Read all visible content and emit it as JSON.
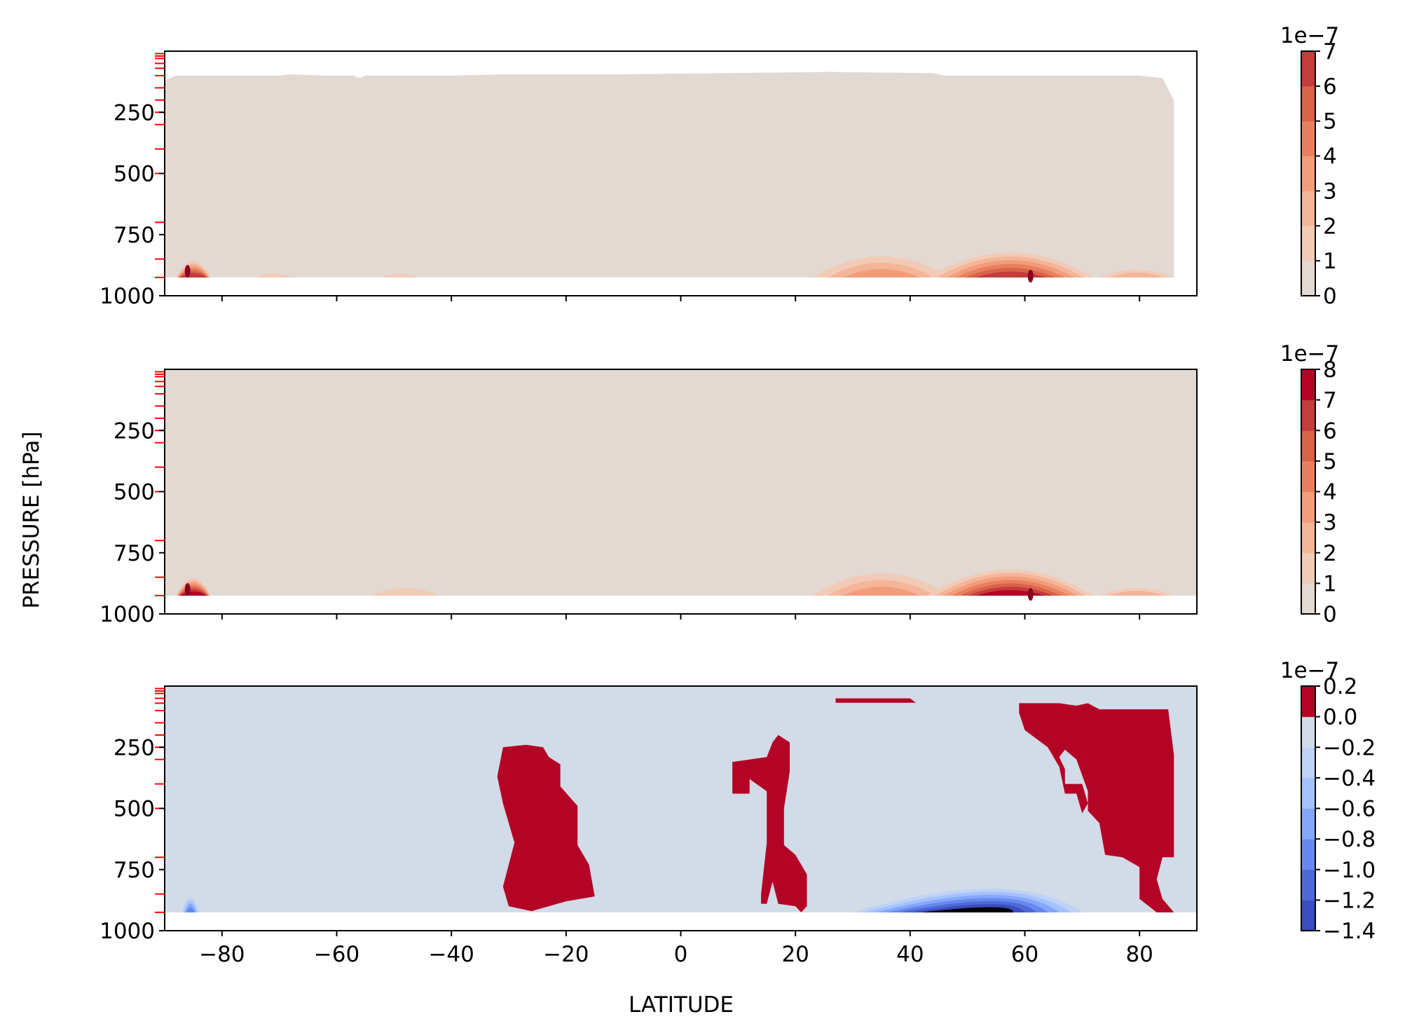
{
  "figure": {
    "ylabel": "PRESSURE [hPa]",
    "xlabel": "LATITUDE",
    "xticks": [
      -80,
      -60,
      -40,
      -20,
      0,
      20,
      40,
      60,
      80
    ],
    "xlim": [
      -90,
      90
    ],
    "yticks": [
      250,
      500,
      750,
      1000
    ],
    "ylim": [
      1000,
      0
    ],
    "y_inverted": true,
    "pressure_levels": [
      10,
      20,
      30,
      50,
      70,
      100,
      150,
      200,
      250,
      300,
      400,
      500,
      700,
      850,
      925
    ]
  },
  "chart_data": [
    {
      "type": "heatmap",
      "panel": "top",
      "colorbar": {
        "levels": [
          0,
          1,
          2,
          3,
          4,
          5,
          6,
          7
        ],
        "tick_labels": [
          "0",
          "1",
          "2",
          "3",
          "4",
          "5",
          "6",
          "7"
        ],
        "multiplier": "1e−7",
        "cmap": "coolwarm",
        "colors": [
          "#e3d9d3",
          "#f2cbb7",
          "#f4b598",
          "#f39c7a",
          "#e8805f",
          "#da6248",
          "#c43c3c"
        ]
      },
      "background_level": 0,
      "field_extent": {
        "lat": [
          -90,
          86
        ],
        "pressure_top": 100,
        "pressure_bottom": 925
      },
      "maxima": [
        {
          "lat": -86,
          "pressure": 900,
          "value": 7
        },
        {
          "lat": 61,
          "pressure": 920,
          "value": 7
        }
      ],
      "ridges": [
        {
          "lat": [
            -86,
            -84
          ],
          "pressure_top": 810,
          "peak": 6.5
        },
        {
          "lat": [
            -72,
            -70
          ],
          "pressure_top": 910,
          "peak": 1
        },
        {
          "lat": [
            -50,
            -48
          ],
          "pressure_top": 910,
          "peak": 1
        },
        {
          "lat": [
            25,
            45
          ],
          "pressure_top": 770,
          "peak": 3
        },
        {
          "lat": [
            45,
            70
          ],
          "pressure_top": 740,
          "peak": 7
        },
        {
          "lat": [
            75,
            84
          ],
          "pressure_top": 880,
          "peak": 2
        }
      ]
    },
    {
      "type": "heatmap",
      "panel": "middle",
      "colorbar": {
        "levels": [
          0,
          1,
          2,
          3,
          4,
          5,
          6,
          7,
          8
        ],
        "tick_labels": [
          "0",
          "1",
          "2",
          "3",
          "4",
          "5",
          "6",
          "7",
          "8"
        ],
        "multiplier": "1e−7",
        "cmap": "coolwarm",
        "colors": [
          "#e3d9d3",
          "#f2cbb7",
          "#f4b598",
          "#f39c7a",
          "#e8805f",
          "#da6248",
          "#c43c3c",
          "#b40426"
        ]
      },
      "background_level": 0,
      "field_extent": {
        "lat": [
          -90,
          90
        ],
        "pressure_top": 0,
        "pressure_bottom": 925
      },
      "maxima": [
        {
          "lat": -86,
          "pressure": 900,
          "value": 8
        },
        {
          "lat": 61,
          "pressure": 920,
          "value": 8
        }
      ],
      "ridges": [
        {
          "lat": [
            -86,
            -84
          ],
          "pressure_top": 800,
          "peak": 7
        },
        {
          "lat": [
            -52,
            -44
          ],
          "pressure_top": 880,
          "peak": 1
        },
        {
          "lat": [
            25,
            45
          ],
          "pressure_top": 760,
          "peak": 3
        },
        {
          "lat": [
            45,
            70
          ],
          "pressure_top": 730,
          "peak": 8
        },
        {
          "lat": [
            75,
            84
          ],
          "pressure_top": 880,
          "peak": 2
        }
      ]
    },
    {
      "type": "heatmap",
      "panel": "bottom",
      "colorbar": {
        "levels": [
          -1.4,
          -1.2,
          -1.0,
          -0.8,
          -0.6,
          -0.4,
          -0.2,
          0.0,
          0.2
        ],
        "tick_labels": [
          "−1.4",
          "−1.2",
          "−1.0",
          "−0.8",
          "−0.6",
          "−0.4",
          "−0.2",
          "0.0",
          "0.2"
        ],
        "multiplier": "1e−7",
        "cmap": "coolwarm",
        "colors": [
          "#3b4cc0",
          "#4f69d9",
          "#6788ee",
          "#84a7fc",
          "#a3c2fe",
          "#bed2f6",
          "#d2dbe8",
          "#b40426"
        ]
      },
      "background_level": 0.0,
      "field_extent": {
        "lat": [
          -90,
          90
        ],
        "pressure_top": 0,
        "pressure_bottom": 925
      },
      "positive_regions": [
        {
          "lat": [
            -31,
            -16
          ],
          "pressure": [
            250,
            920
          ],
          "value": 0.2
        },
        {
          "lat": [
            9,
            22
          ],
          "pressure": [
            200,
            925
          ],
          "value": 0.2
        },
        {
          "lat": [
            27,
            41
          ],
          "pressure": [
            50,
            70
          ],
          "value": 0.2
        },
        {
          "lat": [
            59,
            86
          ],
          "pressure": [
            70,
            925
          ],
          "value": 0.2
        }
      ],
      "negative_regions": [
        {
          "lat": [
            -87,
            -84
          ],
          "pressure": [
            820,
            925
          ],
          "peak": -0.8
        },
        {
          "lat": [
            30,
            70
          ],
          "pressure": [
            750,
            925
          ],
          "peak": -1.4
        }
      ]
    }
  ]
}
